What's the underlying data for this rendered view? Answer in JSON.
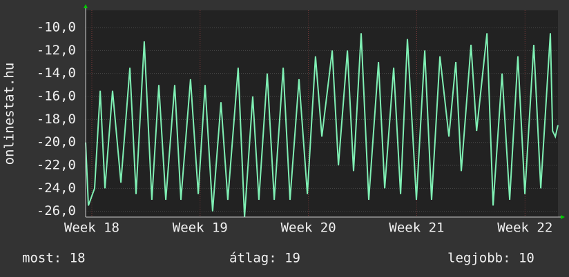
{
  "chart_data": {
    "type": "line",
    "y_label": "onlinestat.hu",
    "x": [
      -0.4,
      -0.22,
      0.18,
      0.54,
      0.85,
      1.34,
      1.88,
      2.46,
      2.86,
      3.39,
      3.88,
      4.33,
      4.78,
      5.36,
      5.76,
      6.38,
      6.88,
      7.32,
      7.81,
      8.35,
      8.79,
      9.46,
      9.87,
      10.4,
      10.8,
      11.34,
      11.79,
      12.37,
      12.81,
      13.39,
      13.93,
      14.46,
      14.87,
      15.54,
      15.94,
      16.52,
      16.92,
      17.41,
      17.9,
      18.53,
      18.93,
      19.51,
      19.96,
      20.4,
      20.98,
      21.52,
      21.96,
      22.5,
      23.08,
      23.53,
      23.88,
      24.51,
      24.87,
      25.54,
      25.94,
      26.52,
      27.01,
      27.54,
      27.99,
      28.57,
      29.02,
      29.64,
      29.78,
      29.96,
      30.13
    ],
    "series": [
      {
        "color": "#7ff0b4",
        "values": [
          -20,
          -25.5,
          -24,
          -15.5,
          -24,
          -15.5,
          -23.5,
          -13.5,
          -24.5,
          -11.2,
          -25,
          -15,
          -25,
          -15,
          -25,
          -14.5,
          -24.5,
          -15,
          -26,
          -16.5,
          -25,
          -13.5,
          -26.5,
          -16,
          -25,
          -14,
          -25,
          -13.5,
          -25,
          -14.5,
          -24.5,
          -12.5,
          -19.5,
          -12,
          -22,
          -12,
          -22.5,
          -10.5,
          -25,
          -13,
          -24,
          -13.5,
          -24.5,
          -11,
          -25,
          -12,
          -25,
          -12.5,
          -19.5,
          -13,
          -22.5,
          -11.5,
          -19,
          -10.5,
          -25.5,
          -14,
          -25,
          -12.5,
          -24.5,
          -11.5,
          -24,
          -10.5,
          -19,
          -19.5,
          -18.5
        ]
      }
    ],
    "xlim": [
      -0.4,
      30.13
    ],
    "ylim": [
      -26.5,
      -8.5
    ],
    "xticks": [
      {
        "value": 0,
        "label": "Week 18"
      },
      {
        "value": 7,
        "label": "Week 19"
      },
      {
        "value": 14,
        "label": "Week 20"
      },
      {
        "value": 21,
        "label": "Week 21"
      },
      {
        "value": 28,
        "label": "Week 22"
      }
    ],
    "yticks": [
      {
        "value": -10,
        "label": "-10,0"
      },
      {
        "value": -12,
        "label": "-12,0"
      },
      {
        "value": -14,
        "label": "-14,0"
      },
      {
        "value": -16,
        "label": "-16,0"
      },
      {
        "value": -18,
        "label": "-18,0"
      },
      {
        "value": -20,
        "label": "-20,0"
      },
      {
        "value": -22,
        "label": "-22,0"
      },
      {
        "value": -24,
        "label": "-24,0"
      },
      {
        "value": -26,
        "label": "-26,0"
      }
    ],
    "grid": true
  },
  "footer": [
    "most: 18",
    "átlag: 19",
    "legjobb: 10"
  ]
}
